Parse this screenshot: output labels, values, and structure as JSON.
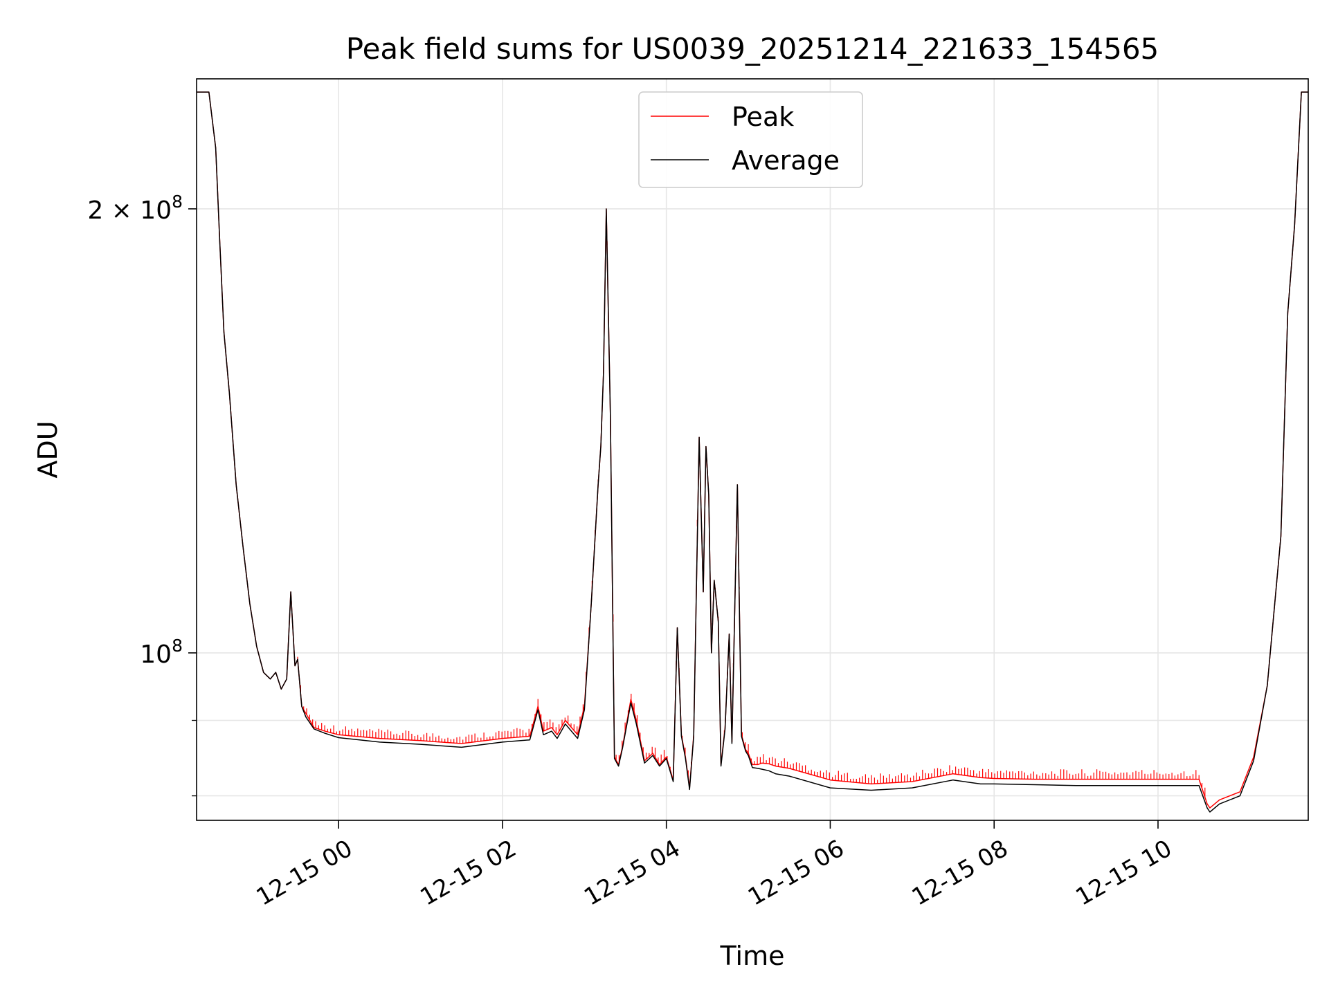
{
  "chart_data": {
    "type": "line",
    "title": "Peak field sums for US0039_20251214_221633_154565",
    "xlabel": "Time",
    "ylabel": "ADU",
    "yscale": "log",
    "ylim": [
      77000000,
      245000000
    ],
    "xlim": [
      "2025-12-14 22:16",
      "2025-12-15 11:50"
    ],
    "grid": true,
    "legend_position": "top-center",
    "x_ticks": [
      "2025-12-15 00:00",
      "2025-12-15 02:00",
      "2025-12-15 04:00",
      "2025-12-15 06:00",
      "2025-12-15 08:00",
      "2025-12-15 10:00"
    ],
    "x_tick_labels": [
      "12-15 00",
      "12-15 02",
      "12-15 04",
      "12-15 06",
      "12-15 08",
      "12-15 10"
    ],
    "y_ticks": [
      100000000,
      200000000
    ],
    "y_tick_base": [
      "10",
      "2 × 10"
    ],
    "y_tick_exp": [
      "8",
      "8"
    ],
    "y_minor_ticks": [
      80000000,
      90000000
    ],
    "series": [
      {
        "name": "Peak",
        "color": "#ff0000",
        "x": [
          "2025-12-14 22:16",
          "2025-12-14 22:25",
          "2025-12-14 22:30",
          "2025-12-14 22:33",
          "2025-12-14 22:36",
          "2025-12-14 22:40",
          "2025-12-14 22:45",
          "2025-12-14 22:50",
          "2025-12-14 22:55",
          "2025-12-14 23:00",
          "2025-12-14 23:05",
          "2025-12-14 23:10",
          "2025-12-14 23:14",
          "2025-12-14 23:18",
          "2025-12-14 23:22",
          "2025-12-14 23:25",
          "2025-12-14 23:28",
          "2025-12-14 23:30",
          "2025-12-14 23:33",
          "2025-12-14 23:36",
          "2025-12-14 23:42",
          "2025-12-14 23:50",
          "2025-12-15 00:00",
          "2025-12-15 00:30",
          "2025-12-15 01:00",
          "2025-12-15 01:30",
          "2025-12-15 02:00",
          "2025-12-15 02:20",
          "2025-12-15 02:26",
          "2025-12-15 02:30",
          "2025-12-15 02:36",
          "2025-12-15 02:40",
          "2025-12-15 02:46",
          "2025-12-15 02:55",
          "2025-12-15 03:00",
          "2025-12-15 03:05",
          "2025-12-15 03:10",
          "2025-12-15 03:12",
          "2025-12-15 03:14",
          "2025-12-15 03:16",
          "2025-12-15 03:19",
          "2025-12-15 03:22",
          "2025-12-15 03:25",
          "2025-12-15 03:28",
          "2025-12-15 03:34",
          "2025-12-15 03:38",
          "2025-12-15 03:44",
          "2025-12-15 03:50",
          "2025-12-15 03:55",
          "2025-12-15 04:00",
          "2025-12-15 04:05",
          "2025-12-15 04:08",
          "2025-12-15 04:11",
          "2025-12-15 04:14",
          "2025-12-15 04:17",
          "2025-12-15 04:20",
          "2025-12-15 04:24",
          "2025-12-15 04:27",
          "2025-12-15 04:29",
          "2025-12-15 04:31",
          "2025-12-15 04:33",
          "2025-12-15 04:35",
          "2025-12-15 04:38",
          "2025-12-15 04:40",
          "2025-12-15 04:43",
          "2025-12-15 04:46",
          "2025-12-15 04:48",
          "2025-12-15 04:52",
          "2025-12-15 04:55",
          "2025-12-15 04:58",
          "2025-12-15 05:00",
          "2025-12-15 05:03",
          "2025-12-15 05:07",
          "2025-12-15 05:10",
          "2025-12-15 05:15",
          "2025-12-15 05:20",
          "2025-12-15 05:30",
          "2025-12-15 06:00",
          "2025-12-15 06:30",
          "2025-12-15 07:00",
          "2025-12-15 07:30",
          "2025-12-15 07:50",
          "2025-12-15 08:00",
          "2025-12-15 08:30",
          "2025-12-15 09:00",
          "2025-12-15 09:30",
          "2025-12-15 10:00",
          "2025-12-15 10:30",
          "2025-12-15 10:36",
          "2025-12-15 10:38",
          "2025-12-15 10:45",
          "2025-12-15 11:00",
          "2025-12-15 11:10",
          "2025-12-15 11:20",
          "2025-12-15 11:30",
          "2025-12-15 11:35",
          "2025-12-15 11:40",
          "2025-12-15 11:45",
          "2025-12-15 11:50"
        ],
        "values": [
          240000000,
          240000000,
          220000000,
          190000000,
          165000000,
          150000000,
          130000000,
          118000000,
          108000000,
          101000000,
          97000000,
          96000000,
          97000000,
          94500000,
          96000000,
          110000000,
          98000000,
          99000000,
          92000000,
          91000000,
          89000000,
          88500000,
          88000000,
          87500000,
          87200000,
          86800000,
          87500000,
          87800000,
          92000000,
          88500000,
          89000000,
          88000000,
          90000000,
          88000000,
          92000000,
          108000000,
          130000000,
          138000000,
          155000000,
          200000000,
          145000000,
          85000000,
          84000000,
          86500000,
          93000000,
          90000000,
          84500000,
          85500000,
          84000000,
          85000000,
          82000000,
          104000000,
          88000000,
          85000000,
          81000000,
          88000000,
          140000000,
          110000000,
          138000000,
          128000000,
          100000000,
          112000000,
          105000000,
          84000000,
          89000000,
          103000000,
          87000000,
          130000000,
          88000000,
          86000000,
          85500000,
          84000000,
          84000000,
          84200000,
          84100000,
          83800000,
          83500000,
          82000000,
          81500000,
          81800000,
          82800000,
          82300000,
          82200000,
          82100000,
          82100000,
          82100000,
          82100000,
          82100000,
          79000000,
          78500000,
          79500000,
          80500000,
          85000000,
          95000000,
          120000000,
          170000000,
          195000000,
          240000000,
          240000000
        ],
        "spike_region": [
          "2025-12-14 23:30",
          "2025-12-15 10:36"
        ],
        "spike_amplitude": 1300000
      },
      {
        "name": "Average",
        "color": "#000000",
        "x": [
          "2025-12-14 22:16",
          "2025-12-14 22:25",
          "2025-12-14 22:30",
          "2025-12-14 22:33",
          "2025-12-14 22:36",
          "2025-12-14 22:40",
          "2025-12-14 22:45",
          "2025-12-14 22:50",
          "2025-12-14 22:55",
          "2025-12-14 23:00",
          "2025-12-14 23:05",
          "2025-12-14 23:10",
          "2025-12-14 23:14",
          "2025-12-14 23:18",
          "2025-12-14 23:22",
          "2025-12-14 23:25",
          "2025-12-14 23:28",
          "2025-12-14 23:30",
          "2025-12-14 23:33",
          "2025-12-14 23:36",
          "2025-12-14 23:42",
          "2025-12-14 23:50",
          "2025-12-15 00:00",
          "2025-12-15 00:30",
          "2025-12-15 01:00",
          "2025-12-15 01:30",
          "2025-12-15 02:00",
          "2025-12-15 02:20",
          "2025-12-15 02:26",
          "2025-12-15 02:30",
          "2025-12-15 02:36",
          "2025-12-15 02:40",
          "2025-12-15 02:46",
          "2025-12-15 02:55",
          "2025-12-15 03:00",
          "2025-12-15 03:05",
          "2025-12-15 03:10",
          "2025-12-15 03:12",
          "2025-12-15 03:14",
          "2025-12-15 03:16",
          "2025-12-15 03:19",
          "2025-12-15 03:22",
          "2025-12-15 03:25",
          "2025-12-15 03:28",
          "2025-12-15 03:34",
          "2025-12-15 03:38",
          "2025-12-15 03:44",
          "2025-12-15 03:50",
          "2025-12-15 03:55",
          "2025-12-15 04:00",
          "2025-12-15 04:05",
          "2025-12-15 04:08",
          "2025-12-15 04:11",
          "2025-12-15 04:14",
          "2025-12-15 04:17",
          "2025-12-15 04:20",
          "2025-12-15 04:24",
          "2025-12-15 04:27",
          "2025-12-15 04:29",
          "2025-12-15 04:31",
          "2025-12-15 04:33",
          "2025-12-15 04:35",
          "2025-12-15 04:38",
          "2025-12-15 04:40",
          "2025-12-15 04:43",
          "2025-12-15 04:46",
          "2025-12-15 04:48",
          "2025-12-15 04:52",
          "2025-12-15 04:55",
          "2025-12-15 04:58",
          "2025-12-15 05:00",
          "2025-12-15 05:03",
          "2025-12-15 05:07",
          "2025-12-15 05:10",
          "2025-12-15 05:15",
          "2025-12-15 05:20",
          "2025-12-15 05:30",
          "2025-12-15 06:00",
          "2025-12-15 06:30",
          "2025-12-15 07:00",
          "2025-12-15 07:30",
          "2025-12-15 07:50",
          "2025-12-15 08:00",
          "2025-12-15 08:30",
          "2025-12-15 09:00",
          "2025-12-15 09:30",
          "2025-12-15 10:00",
          "2025-12-15 10:30",
          "2025-12-15 10:36",
          "2025-12-15 10:38",
          "2025-12-15 10:45",
          "2025-12-15 11:00",
          "2025-12-15 11:10",
          "2025-12-15 11:20",
          "2025-12-15 11:30",
          "2025-12-15 11:35",
          "2025-12-15 11:40",
          "2025-12-15 11:45",
          "2025-12-15 11:50"
        ],
        "values": [
          240000000,
          240000000,
          220000000,
          190000000,
          165000000,
          150000000,
          130000000,
          118000000,
          108000000,
          101000000,
          97000000,
          96000000,
          97000000,
          94500000,
          96000000,
          110000000,
          98000000,
          99000000,
          92000000,
          90500000,
          88800000,
          88200000,
          87600000,
          87000000,
          86700000,
          86300000,
          87000000,
          87300000,
          91500000,
          88000000,
          88500000,
          87500000,
          89500000,
          87500000,
          91500000,
          108000000,
          130000000,
          138000000,
          155000000,
          200000000,
          145000000,
          84800000,
          83800000,
          86300000,
          92500000,
          89500000,
          84200000,
          85200000,
          83800000,
          84800000,
          81800000,
          104000000,
          87800000,
          84800000,
          80800000,
          87800000,
          140000000,
          110000000,
          138000000,
          128000000,
          100000000,
          112000000,
          105000000,
          83800000,
          88800000,
          103000000,
          86800000,
          130000000,
          87800000,
          85800000,
          85200000,
          83600000,
          83500000,
          83400000,
          83200000,
          82800000,
          82500000,
          81000000,
          80700000,
          81000000,
          82000000,
          81500000,
          81500000,
          81400000,
          81300000,
          81300000,
          81300000,
          81300000,
          78500000,
          78000000,
          79000000,
          80000000,
          84500000,
          95000000,
          120000000,
          170000000,
          195000000,
          240000000,
          240000000
        ]
      }
    ]
  }
}
